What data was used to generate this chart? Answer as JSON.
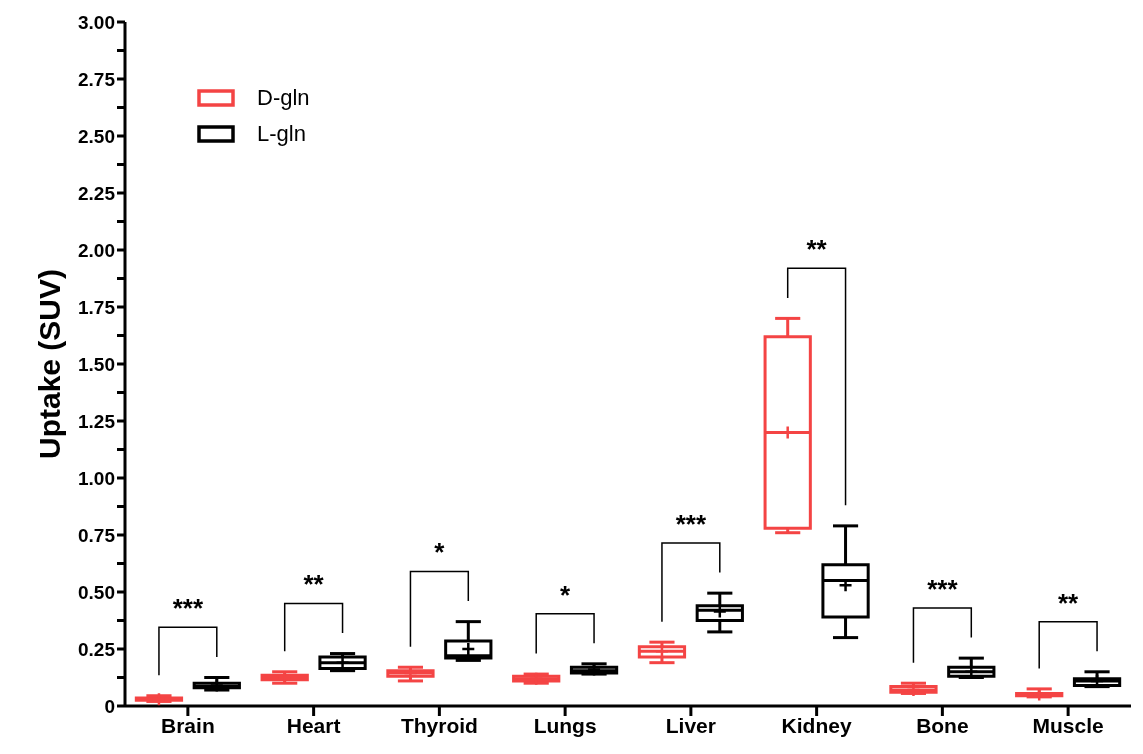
{
  "chart_data": {
    "type": "box",
    "ylabel": "Uptake (SUV)",
    "legend": "top left",
    "categories": [
      "Brain",
      "Heart",
      "Thyroid",
      "Lungs",
      "Liver",
      "Kidney",
      "Bone",
      "Muscle"
    ],
    "ylim": [
      0,
      3
    ],
    "yticks": [
      0,
      {
        "value": 0.125,
        "label": null
      },
      {
        "value": 0.25,
        "label": "0.25"
      },
      {
        "value": 0.375,
        "label": null
      },
      {
        "value": 0.5,
        "label": "0.50"
      },
      {
        "value": 0.625,
        "label": null
      },
      {
        "value": 0.75,
        "label": "0.75"
      },
      {
        "value": 0.875,
        "label": null
      },
      {
        "value": 1,
        "label": "1.00"
      },
      {
        "value": 1.125,
        "label": null
      },
      {
        "value": 1.25,
        "label": "1.25"
      },
      {
        "value": 1.375,
        "label": null
      },
      {
        "value": 1.5,
        "label": "1.50"
      },
      {
        "value": 1.625,
        "label": null
      },
      {
        "value": 1.75,
        "label": "1.75"
      },
      {
        "value": 1.875,
        "label": null
      },
      {
        "value": 2,
        "label": "2.00"
      },
      {
        "value": 2.125,
        "label": null
      },
      {
        "value": 2.25,
        "label": "2.25"
      },
      {
        "value": 2.375,
        "label": null
      },
      {
        "value": 2.5,
        "label": "2.50"
      },
      {
        "value": 2.625,
        "label": null
      },
      {
        "value": 2.75,
        "label": "2.75"
      },
      {
        "value": 2.875,
        "label": null
      },
      {
        "value": 3,
        "label": "3.00"
      }
    ],
    "series": [
      {
        "name": "D-gln",
        "color": "#f44444",
        "boxes": [
          {
            "low": 0.02,
            "q1": 0.025,
            "median": 0.03,
            "q3": 0.035,
            "high": 0.045,
            "mean": 0.03
          },
          {
            "low": 0.1,
            "q1": 0.115,
            "median": 0.125,
            "q3": 0.135,
            "high": 0.15,
            "mean": 0.125
          },
          {
            "low": 0.11,
            "q1": 0.13,
            "median": 0.145,
            "q3": 0.155,
            "high": 0.17,
            "mean": 0.145
          },
          {
            "low": 0.1,
            "q1": 0.11,
            "median": 0.12,
            "q3": 0.13,
            "high": 0.14,
            "mean": 0.12
          },
          {
            "low": 0.19,
            "q1": 0.215,
            "median": 0.24,
            "q3": 0.26,
            "high": 0.28,
            "mean": 0.24
          },
          {
            "low": 0.76,
            "q1": 0.78,
            "median": 1.2,
            "q3": 1.62,
            "high": 1.7,
            "mean": 1.2
          },
          {
            "low": 0.055,
            "q1": 0.06,
            "median": 0.07,
            "q3": 0.085,
            "high": 0.1,
            "mean": 0.07
          },
          {
            "low": 0.04,
            "q1": 0.045,
            "median": 0.05,
            "q3": 0.055,
            "high": 0.075,
            "mean": 0.05
          }
        ]
      },
      {
        "name": "L-gln",
        "color": "#000000",
        "boxes": [
          {
            "low": 0.07,
            "q1": 0.08,
            "median": 0.085,
            "q3": 0.1,
            "high": 0.125,
            "mean": 0.09
          },
          {
            "low": 0.155,
            "q1": 0.165,
            "median": 0.19,
            "q3": 0.215,
            "high": 0.23,
            "mean": 0.19
          },
          {
            "low": 0.2,
            "q1": 0.21,
            "median": 0.22,
            "q3": 0.285,
            "high": 0.37,
            "mean": 0.25
          },
          {
            "low": 0.14,
            "q1": 0.145,
            "median": 0.155,
            "q3": 0.17,
            "high": 0.185,
            "mean": 0.16
          },
          {
            "low": 0.325,
            "q1": 0.375,
            "median": 0.42,
            "q3": 0.44,
            "high": 0.495,
            "mean": 0.415
          },
          {
            "low": 0.3,
            "q1": 0.39,
            "median": 0.55,
            "q3": 0.62,
            "high": 0.79,
            "mean": 0.53
          },
          {
            "low": 0.125,
            "q1": 0.13,
            "median": 0.15,
            "q3": 0.17,
            "high": 0.21,
            "mean": 0.15
          },
          {
            "low": 0.085,
            "q1": 0.09,
            "median": 0.11,
            "q3": 0.12,
            "high": 0.15,
            "mean": 0.11
          }
        ]
      }
    ],
    "annotations": [
      "***",
      "**",
      "*",
      "*",
      "***",
      "**",
      "***",
      "**"
    ]
  }
}
